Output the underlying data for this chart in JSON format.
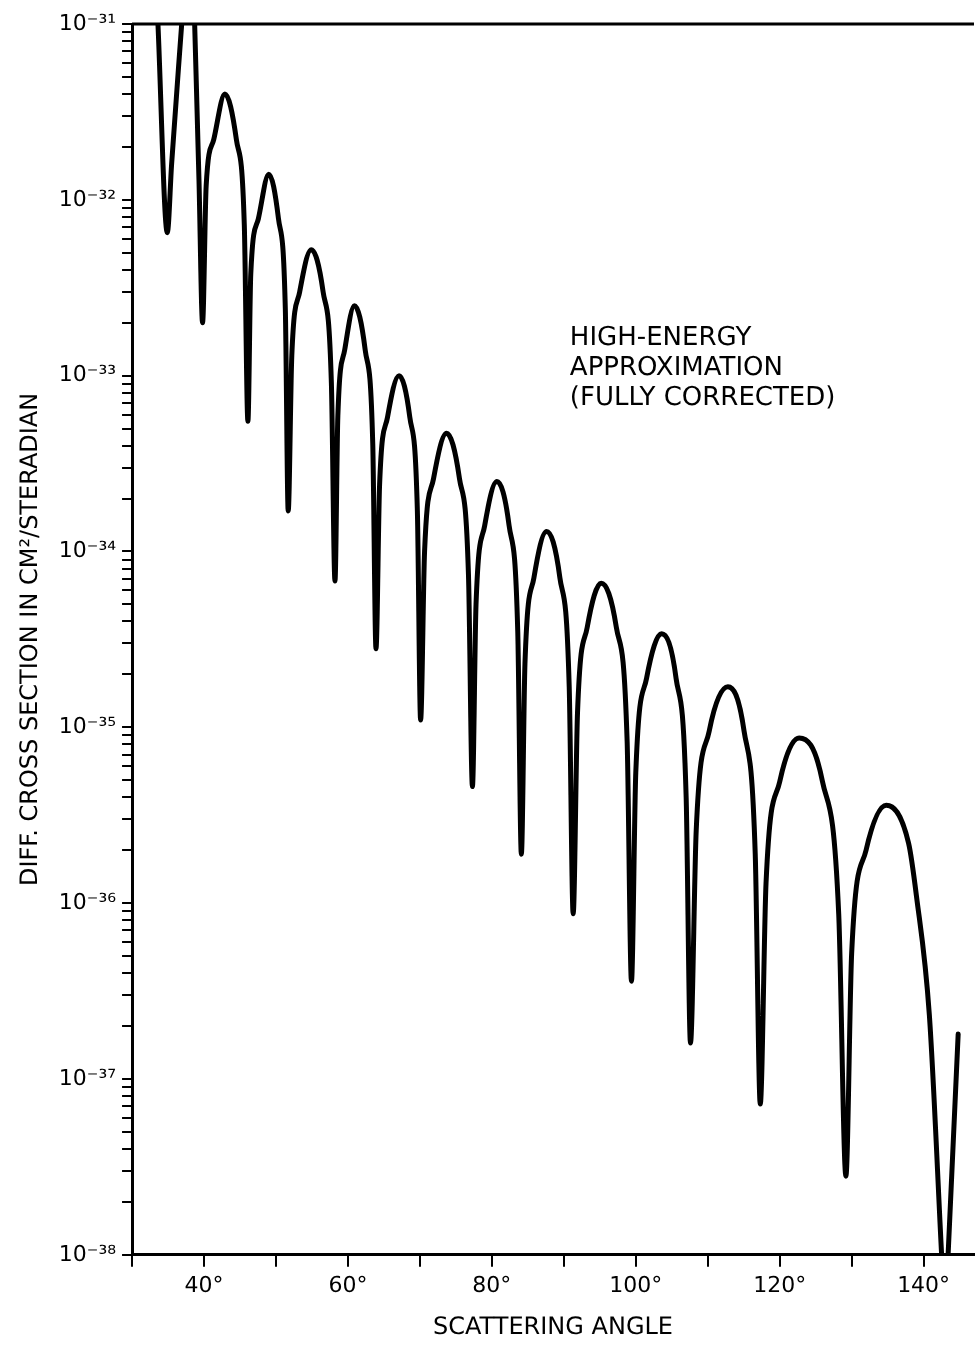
{
  "chart_data": {
    "type": "line",
    "xlabel": "SCATTERING ANGLE",
    "ylabel": "DIFF. CROSS SECTION IN CM²/STERADIAN",
    "annotations": [
      "HIGH-ENERGY\nAPPROXIMATION\n(FULLY CORRECTED)"
    ],
    "log": "y",
    "grid": false,
    "legend": false,
    "marker": "none",
    "line_style": "solid",
    "xlim": [
      30,
      147
    ],
    "xticks": [
      {
        "value": 30,
        "label": null
      },
      {
        "value": 40,
        "label": "40°"
      },
      {
        "value": 50,
        "label": null
      },
      {
        "value": 60,
        "label": "60°"
      },
      {
        "value": 70,
        "label": null
      },
      {
        "value": 80,
        "label": "80°"
      },
      {
        "value": 90,
        "label": null
      },
      {
        "value": 100,
        "label": "100°"
      },
      {
        "value": 110,
        "label": null
      },
      {
        "value": 120,
        "label": "120°"
      },
      {
        "value": 130,
        "label": null
      },
      {
        "value": 140,
        "label": "140°"
      }
    ],
    "ylim": [
      1e-38,
      1e-31
    ],
    "yticks": [
      {
        "value": 1e-38,
        "label": "10⁻³⁸"
      },
      {
        "value": 2e-38,
        "label": null
      },
      {
        "value": 3e-38,
        "label": null
      },
      {
        "value": 4e-38,
        "label": null
      },
      {
        "value": 5e-38,
        "label": null
      },
      {
        "value": 6e-38,
        "label": null
      },
      {
        "value": 7e-38,
        "label": null
      },
      {
        "value": 8e-38,
        "label": null
      },
      {
        "value": 9e-38,
        "label": null
      },
      {
        "value": 1e-37,
        "label": "10⁻³⁷"
      },
      {
        "value": 2e-37,
        "label": null
      },
      {
        "value": 3e-37,
        "label": null
      },
      {
        "value": 4e-37,
        "label": null
      },
      {
        "value": 5e-37,
        "label": null
      },
      {
        "value": 6e-37,
        "label": null
      },
      {
        "value": 7e-37,
        "label": null
      },
      {
        "value": 8e-37,
        "label": null
      },
      {
        "value": 9e-37,
        "label": null
      },
      {
        "value": 1e-36,
        "label": "10⁻³⁶"
      },
      {
        "value": 2e-36,
        "label": null
      },
      {
        "value": 3e-36,
        "label": null
      },
      {
        "value": 4e-36,
        "label": null
      },
      {
        "value": 5e-36,
        "label": null
      },
      {
        "value": 6e-36,
        "label": null
      },
      {
        "value": 7e-36,
        "label": null
      },
      {
        "value": 8e-36,
        "label": null
      },
      {
        "value": 9e-36,
        "label": null
      },
      {
        "value": 1e-35,
        "label": "10⁻³⁵"
      },
      {
        "value": 2e-35,
        "label": null
      },
      {
        "value": 3e-35,
        "label": null
      },
      {
        "value": 4e-35,
        "label": null
      },
      {
        "value": 5e-35,
        "label": null
      },
      {
        "value": 6e-35,
        "label": null
      },
      {
        "value": 7e-35,
        "label": null
      },
      {
        "value": 8e-35,
        "label": null
      },
      {
        "value": 9e-35,
        "label": null
      },
      {
        "value": 1e-34,
        "label": "10⁻³⁴"
      },
      {
        "value": 2e-34,
        "label": null
      },
      {
        "value": 3e-34,
        "label": null
      },
      {
        "value": 4e-34,
        "label": null
      },
      {
        "value": 5e-34,
        "label": null
      },
      {
        "value": 6e-34,
        "label": null
      },
      {
        "value": 7e-34,
        "label": null
      },
      {
        "value": 8e-34,
        "label": null
      },
      {
        "value": 9e-34,
        "label": null
      },
      {
        "value": 1e-33,
        "label": "10⁻³³"
      },
      {
        "value": 2e-33,
        "label": null
      },
      {
        "value": 3e-33,
        "label": null
      },
      {
        "value": 4e-33,
        "label": null
      },
      {
        "value": 5e-33,
        "label": null
      },
      {
        "value": 6e-33,
        "label": null
      },
      {
        "value": 7e-33,
        "label": null
      },
      {
        "value": 8e-33,
        "label": null
      },
      {
        "value": 9e-33,
        "label": null
      },
      {
        "value": 1e-32,
        "label": "10⁻³²"
      },
      {
        "value": 2e-32,
        "label": null
      },
      {
        "value": 3e-32,
        "label": null
      },
      {
        "value": 4e-32,
        "label": null
      },
      {
        "value": 5e-32,
        "label": null
      },
      {
        "value": 6e-32,
        "label": null
      },
      {
        "value": 7e-32,
        "label": null
      },
      {
        "value": 8e-32,
        "label": null
      },
      {
        "value": 9e-32,
        "label": null
      },
      {
        "value": 1e-31,
        "label": "10⁻³¹"
      }
    ],
    "series": [
      {
        "color": "#000000",
        "x": [
          33.6,
          34.9,
          35.5,
          36.9,
          37.8,
          38.7,
          39.3,
          39.8,
          40.3,
          41.35,
          42.9,
          44.5,
          45.6,
          46.1,
          46.5,
          47.55,
          49.0,
          50.35,
          51.3,
          51.7,
          52.2,
          53.3,
          54.9,
          56.55,
          57.7,
          58.2,
          58.6,
          59.55,
          60.9,
          62.4,
          63.45,
          63.9,
          64.4,
          65.5,
          67.1,
          68.6,
          69.65,
          70.1,
          70.65,
          71.9,
          73.7,
          75.5,
          76.75,
          77.3,
          77.8,
          79.0,
          80.7,
          82.4,
          83.6,
          84.1,
          84.6,
          85.85,
          87.6,
          89.45,
          90.75,
          91.3,
          91.9,
          93.25,
          95.2,
          97.3,
          98.8,
          99.4,
          100.0,
          101.5,
          103.6,
          105.6,
          107.0,
          107.6,
          108.4,
          110.2,
          112.8,
          115.05,
          116.6,
          117.3,
          118.1,
          120.0,
          122.7,
          125.95,
          128.2,
          129.2,
          130.0,
          132.0,
          134.8,
          137.9,
          139.0,
          140.8,
          142.5,
          143.0,
          143.4,
          144.8
        ],
        "values": [
          1e-31,
          6.5e-33,
          1.6e-32,
          1e-31,
          null,
          1e-31,
          1.3e-32,
          2e-33,
          1.2e-32,
          2.2e-32,
          4e-32,
          2.2e-32,
          7.2e-33,
          5.5e-34,
          3.8e-33,
          7.8e-33,
          1.4e-32,
          7.8e-33,
          2.4e-33,
          1.7e-34,
          1.3e-33,
          3e-33,
          5.2e-33,
          3e-33,
          9.1e-34,
          6.8e-35,
          5.9e-34,
          1.4e-33,
          2.5e-33,
          1.4e-33,
          4.1e-34,
          2.8e-35,
          2.4e-34,
          5.8e-34,
          1e-33,
          5.8e-34,
          1.7e-34,
          1.1e-35,
          1e-34,
          2.6e-34,
          4.7e-34,
          2.6e-34,
          7.4e-35,
          4.6e-36,
          5e-35,
          1.4e-34,
          2.5e-34,
          1.4e-34,
          3.5e-35,
          1.9e-36,
          2.3e-35,
          7.1e-35,
          1.3e-34,
          7.1e-35,
          1.7e-35,
          8.7e-37,
          1.2e-35,
          3.7e-35,
          6.6e-35,
          3.7e-35,
          8.3e-36,
          3.6e-37,
          5.5e-36,
          1.9e-35,
          3.4e-35,
          1.9e-35,
          4e-36,
          1.6e-37,
          2.6e-36,
          9.5e-36,
          1.7e-35,
          9.5e-36,
          1.9e-36,
          7.2e-38,
          1.3e-36,
          4.9e-36,
          8.7e-36,
          4.9e-36,
          8.7e-37,
          2.8e-38,
          5.2e-37,
          2e-36,
          3.6e-36,
          2.2e-36,
          1.1e-36,
          2.3e-37,
          1e-38,
          null,
          1e-38,
          1.8e-37
        ]
      }
    ]
  }
}
